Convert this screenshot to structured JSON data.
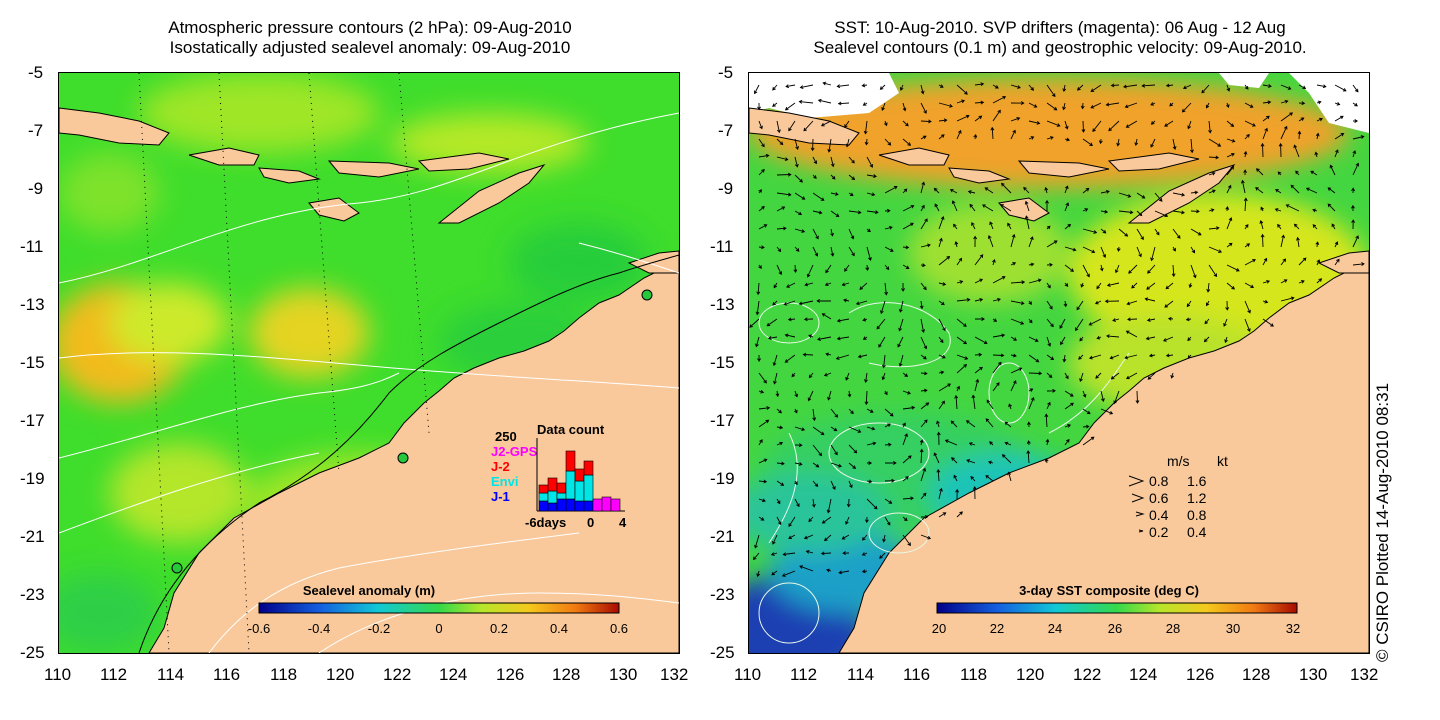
{
  "left": {
    "title_line1": "Atmospheric pressure contours (2 hPa): 09-Aug-2010",
    "title_line2": "Isostatically adjusted sealevel anomaly: 09-Aug-2010",
    "colorbar_label": "Sealevel anomaly (m)",
    "colorbar_ticks": [
      "-0.6",
      "-0.4",
      "-0.2",
      "0",
      "0.2",
      "0.4",
      "0.6"
    ],
    "inset": {
      "title": "Data count",
      "ymax_label": "250",
      "legend": [
        {
          "name": "J2-GPS",
          "color": "#ff00ff"
        },
        {
          "name": "J-2",
          "color": "#ff0000"
        },
        {
          "name": "Envi",
          "color": "#00e5e5"
        },
        {
          "name": "J-1",
          "color": "#0000ff"
        }
      ],
      "xaxis_left": "-6days",
      "xaxis_zero": "0",
      "xaxis_right": "4"
    }
  },
  "right": {
    "title_line1": "SST: 10-Aug-2010. SVP drifters (magenta): 06 Aug - 12 Aug",
    "title_line2": "Sealevel contours (0.1 m) and geostrophic velocity: 09-Aug-2010.",
    "colorbar_label": "3-day SST composite (deg C)",
    "colorbar_ticks": [
      "20",
      "22",
      "24",
      "26",
      "28",
      "30",
      "32"
    ],
    "legend_header_ms": "m/s",
    "legend_header_kt": "kt",
    "legend_rows": [
      {
        "ms": "0.8",
        "kt": "1.6"
      },
      {
        "ms": "0.6",
        "kt": "1.2"
      },
      {
        "ms": "0.4",
        "kt": "0.8"
      },
      {
        "ms": "0.2",
        "kt": "0.4"
      }
    ],
    "credit": "© CSIRO Plotted 14-Aug-2010 08:31"
  },
  "axes": {
    "y_ticks": [
      "-5",
      "-7",
      "-9",
      "-11",
      "-13",
      "-15",
      "-17",
      "-19",
      "-21",
      "-23",
      "-25"
    ],
    "x_ticks": [
      "110",
      "112",
      "114",
      "116",
      "118",
      "120",
      "122",
      "124",
      "126",
      "128",
      "130",
      "132"
    ]
  },
  "colors": {
    "land": "#f9c99b",
    "anomaly_green": "#3fdd2c",
    "anomaly_yellow": "#cdea2a",
    "anomaly_orange": "#f2bb1e",
    "sst_green": "#44d640",
    "sst_yellow": "#d6e61c",
    "sst_orange": "#f0a22a",
    "sst_cyan": "#1dc4b8",
    "sst_blue": "#1f3fb2"
  }
}
